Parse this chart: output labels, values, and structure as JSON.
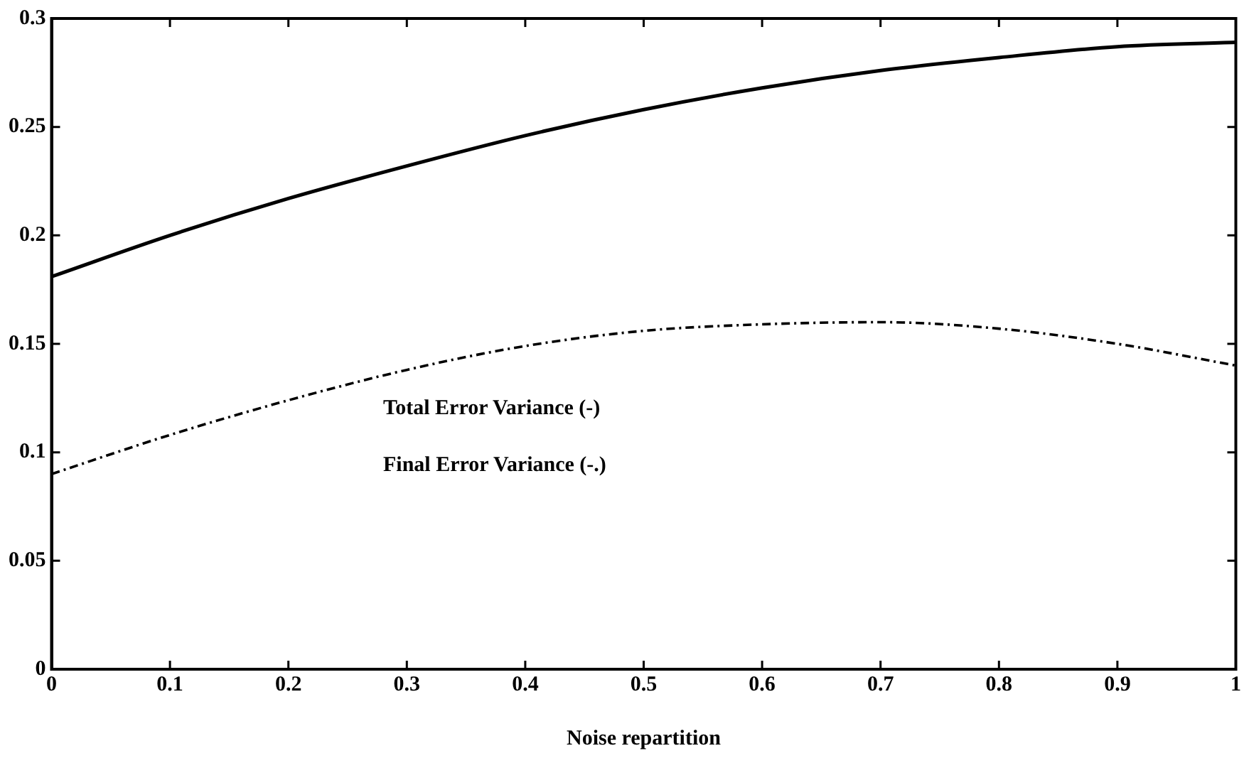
{
  "chart_data": {
    "type": "line",
    "xlabel": "Noise repartition",
    "x": [
      0,
      0.1,
      0.2,
      0.3,
      0.4,
      0.5,
      0.6,
      0.7,
      0.8,
      0.9,
      1
    ],
    "series": [
      {
        "color": "#000000",
        "line_style": "solid",
        "values": [
          0.181,
          0.2,
          0.217,
          0.232,
          0.246,
          0.258,
          0.268,
          0.276,
          0.282,
          0.287,
          0.289
        ]
      },
      {
        "color": "#000000",
        "line_style": "dashed",
        "values": [
          0.09,
          0.108,
          0.124,
          0.138,
          0.149,
          0.156,
          0.159,
          0.16,
          0.157,
          0.15,
          0.14
        ]
      }
    ],
    "xlim": [
      0,
      1
    ],
    "xticks": [
      0,
      0.1,
      0.2,
      0.3,
      0.4,
      0.5,
      0.6,
      0.7,
      0.8,
      0.9,
      1
    ],
    "ylim": [
      0,
      0.3
    ],
    "yticks": [
      0,
      0.05,
      0.1,
      0.15,
      0.2,
      0.25,
      0.3
    ],
    "annotations": [
      "Total Error Variance (-)",
      "Final Error Variance (-.)"
    ],
    "grid": false,
    "legend": false,
    "marker": "none"
  }
}
